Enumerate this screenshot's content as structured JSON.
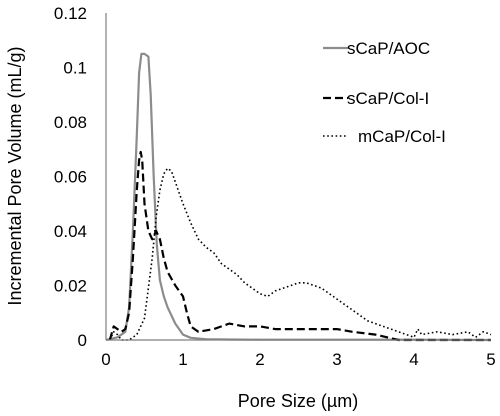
{
  "chart_data": {
    "type": "line",
    "title": "",
    "xlabel": "Pore Size (µm)",
    "ylabel": "Incremental Pore Volume (mL/g)",
    "xlim": [
      0,
      5
    ],
    "ylim": [
      0,
      0.12
    ],
    "xticks": [
      0,
      1,
      2,
      3,
      4,
      5
    ],
    "yticks": [
      0,
      0.02,
      0.04,
      0.06,
      0.08,
      0.1,
      0.12
    ],
    "ytick_labels": [
      "0",
      "0.02",
      "0.04",
      "0.06",
      "0.08",
      "0.1",
      "0.12"
    ],
    "grid": false,
    "legend_position": "top-right",
    "series": [
      {
        "name": "sCaP/AOC",
        "color": "#8c8c8c",
        "dash": "solid",
        "x": [
          0.0,
          0.15,
          0.25,
          0.3,
          0.35,
          0.4,
          0.43,
          0.46,
          0.5,
          0.55,
          0.58,
          0.62,
          0.66,
          0.7,
          0.75,
          0.8,
          0.9,
          1.0,
          1.1,
          1.3,
          1.6,
          2.0,
          3.0,
          4.0,
          5.0
        ],
        "y": [
          0.0,
          0.001,
          0.003,
          0.012,
          0.04,
          0.075,
          0.098,
          0.105,
          0.105,
          0.104,
          0.09,
          0.06,
          0.035,
          0.022,
          0.016,
          0.012,
          0.006,
          0.002,
          0.0008,
          0.0003,
          0.0002,
          0.0001,
          0.0001,
          0.0001,
          0.0
        ]
      },
      {
        "name": "sCaP/Col-I",
        "color": "#000000",
        "dash": "dashed",
        "x": [
          0.05,
          0.1,
          0.15,
          0.2,
          0.25,
          0.3,
          0.35,
          0.4,
          0.43,
          0.45,
          0.47,
          0.5,
          0.55,
          0.6,
          0.65,
          0.7,
          0.75,
          0.8,
          0.9,
          1.0,
          1.05,
          1.1,
          1.2,
          1.4,
          1.6,
          1.8,
          2.0,
          2.2,
          2.5,
          3.0,
          3.2,
          3.5,
          3.8,
          4.0,
          4.5,
          5.0
        ],
        "y": [
          0.0,
          0.005,
          0.004,
          0.003,
          0.004,
          0.01,
          0.03,
          0.055,
          0.066,
          0.069,
          0.066,
          0.05,
          0.04,
          0.037,
          0.04,
          0.037,
          0.03,
          0.025,
          0.02,
          0.016,
          0.01,
          0.005,
          0.003,
          0.004,
          0.006,
          0.005,
          0.005,
          0.004,
          0.004,
          0.004,
          0.003,
          0.002,
          0.0,
          0.0,
          0.0,
          0.0
        ]
      },
      {
        "name": "mCaP/Col-I",
        "color": "#000000",
        "dash": "dotted",
        "x": [
          0.05,
          0.1,
          0.15,
          0.2,
          0.3,
          0.4,
          0.5,
          0.6,
          0.65,
          0.7,
          0.75,
          0.8,
          0.85,
          0.9,
          1.0,
          1.1,
          1.2,
          1.3,
          1.4,
          1.5,
          1.6,
          1.7,
          1.8,
          1.9,
          2.0,
          2.1,
          2.2,
          2.3,
          2.4,
          2.5,
          2.6,
          2.7,
          2.8,
          2.9,
          3.0,
          3.1,
          3.2,
          3.3,
          3.4,
          3.6,
          3.8,
          4.0,
          4.05,
          4.1,
          4.3,
          4.5,
          4.7,
          4.8,
          4.9,
          5.0
        ],
        "y": [
          0.0,
          0.003,
          0.002,
          0.0,
          0.0,
          0.002,
          0.008,
          0.03,
          0.045,
          0.055,
          0.061,
          0.063,
          0.062,
          0.058,
          0.05,
          0.043,
          0.037,
          0.034,
          0.032,
          0.028,
          0.026,
          0.024,
          0.021,
          0.019,
          0.017,
          0.016,
          0.018,
          0.019,
          0.02,
          0.021,
          0.021,
          0.02,
          0.019,
          0.017,
          0.015,
          0.013,
          0.011,
          0.009,
          0.007,
          0.005,
          0.003,
          0.001,
          0.004,
          0.002,
          0.003,
          0.002,
          0.003,
          0.001,
          0.003,
          0.002
        ]
      }
    ]
  }
}
